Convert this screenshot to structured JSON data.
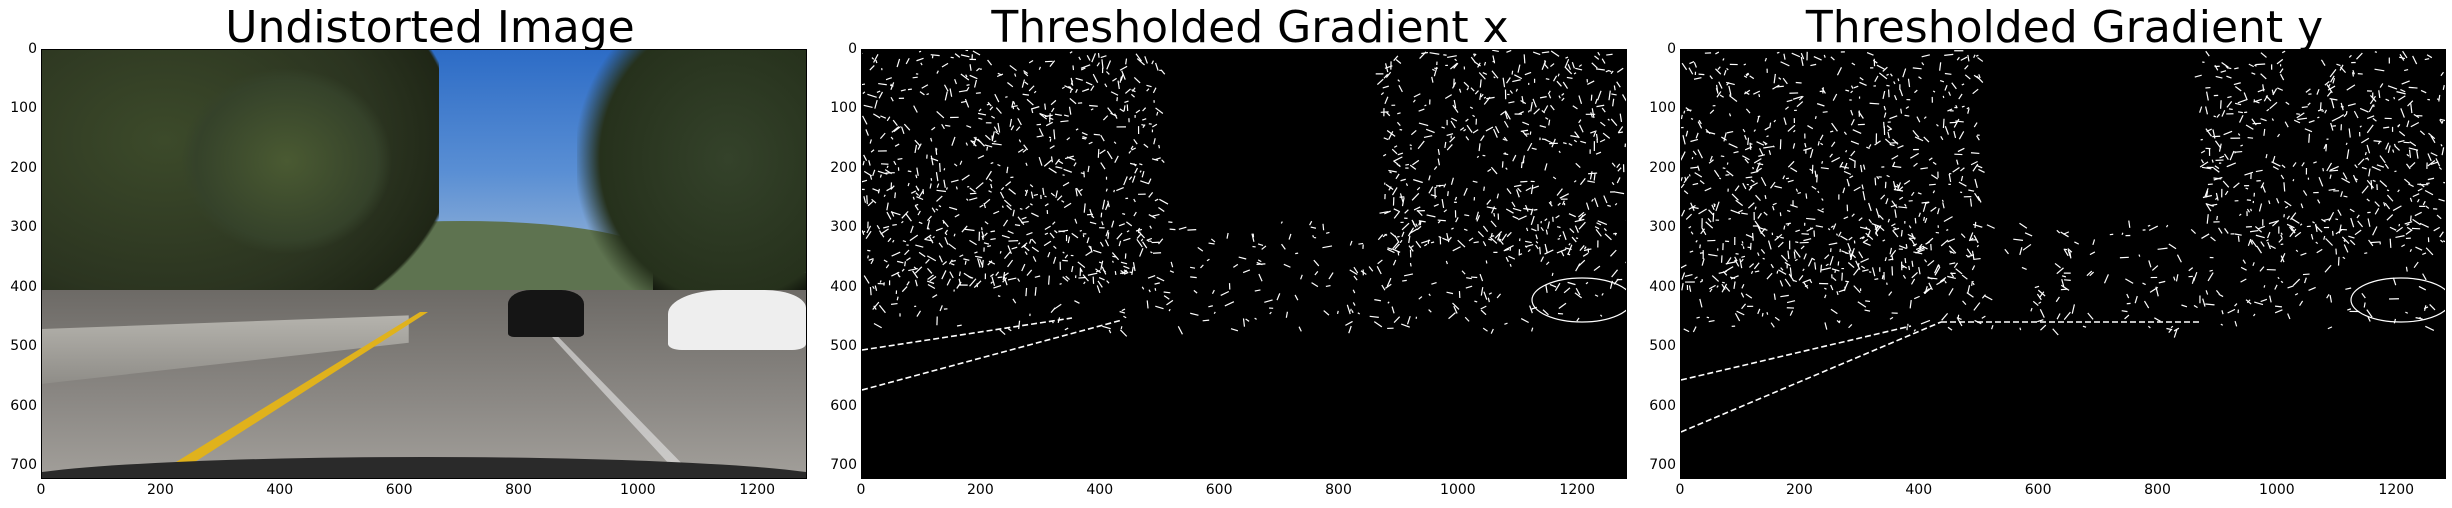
{
  "panels": [
    {
      "title": "Undistorted Image",
      "kind": "photo",
      "yticks": [
        "0",
        "100",
        "200",
        "300",
        "400",
        "500",
        "600",
        "700"
      ],
      "xticks": [
        "0",
        "200",
        "400",
        "600",
        "800",
        "1000",
        "1200"
      ]
    },
    {
      "title": "Thresholded Gradient x",
      "kind": "binary",
      "yticks": [
        "0",
        "100",
        "200",
        "300",
        "400",
        "500",
        "600",
        "700"
      ],
      "xticks": [
        "0",
        "200",
        "400",
        "600",
        "800",
        "1000",
        "1200"
      ]
    },
    {
      "title": "Thresholded Gradient y",
      "kind": "binary",
      "yticks": [
        "0",
        "100",
        "200",
        "300",
        "400",
        "500",
        "600",
        "700"
      ],
      "xticks": [
        "0",
        "200",
        "400",
        "600",
        "800",
        "1000",
        "1200"
      ]
    }
  ],
  "colors": {
    "edge": "#ffffff",
    "background": "#000000",
    "lane_yellow": "#e0b21c"
  }
}
